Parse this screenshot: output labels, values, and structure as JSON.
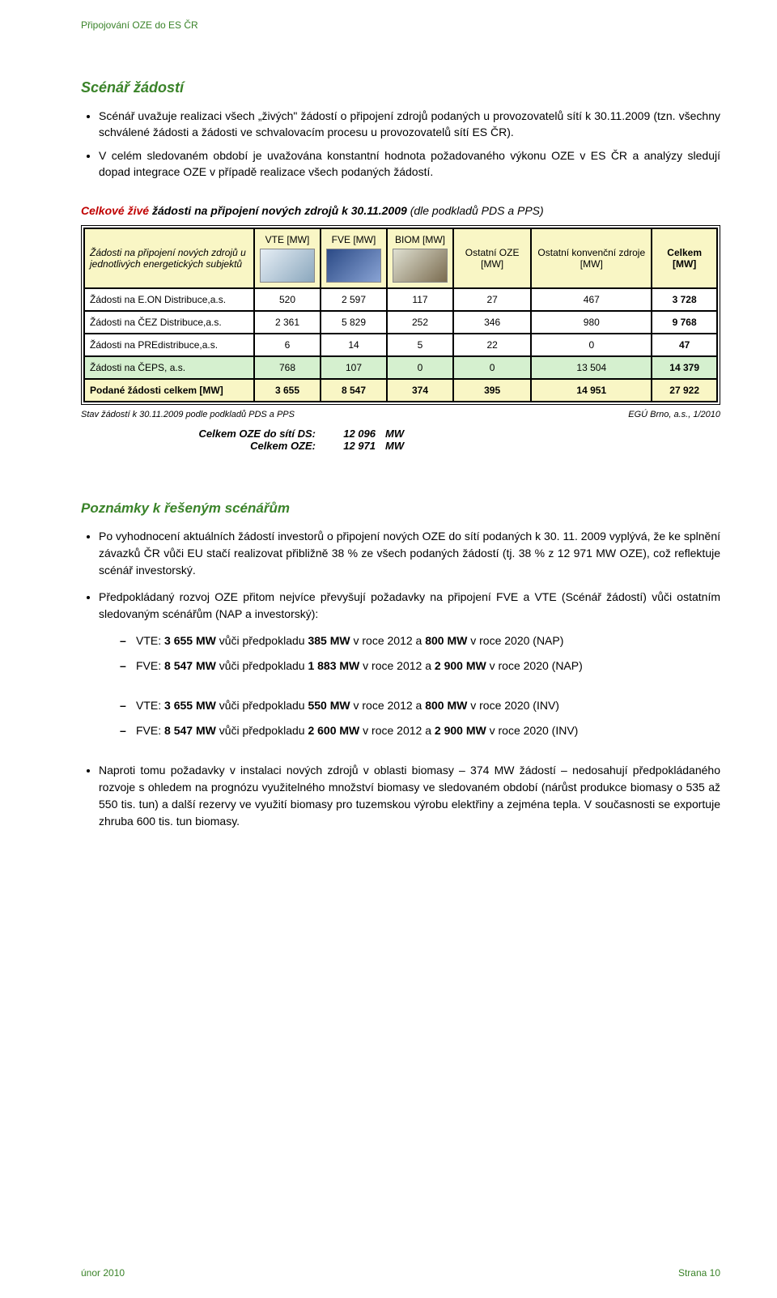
{
  "page": {
    "header": "Připojování OZE do ES ČR",
    "footer_left": "únor 2010",
    "footer_right": "Strana 10"
  },
  "section1": {
    "title": "Scénář žádostí",
    "bullets": [
      "Scénář uvažuje realizaci všech „živých\" žádostí o připojení zdrojů podaných u provozovatelů sítí k 30.11.2009 (tzn. všechny schválené žádosti a žádosti ve schvalovacím procesu u provozovatelů sítí ES ČR).",
      "V celém sledovaném období je uvažována konstantní hodnota požadovaného výkonu OZE v ES ČR a analýzy sledují dopad integrace OZE v případě realizace všech podaných žádostí."
    ]
  },
  "table": {
    "title_red": "Celkové živé",
    "title_bi": " žádosti na připojení nových zdrojů k 30.11.2009 ",
    "title_it": "(dle podkladů PDS a PPS)",
    "head_first": "Žádosti na připojení nových zdrojů u jednotlivých energetických subjektů",
    "columns": [
      {
        "label": "VTE [MW]",
        "has_image": true,
        "img_bg": "#e6eef5",
        "img_fg": "#8aa7bd"
      },
      {
        "label": "FVE [MW]",
        "has_image": true,
        "img_bg": "#2b4a86",
        "img_fg": "#89a3d4"
      },
      {
        "label": "BIOM [MW]",
        "has_image": true,
        "img_bg": "#dfe0d1",
        "img_fg": "#7a6b4f"
      },
      {
        "label": "Ostatní OZE [MW]",
        "has_image": false
      },
      {
        "label": "Ostatní konvenční zdroje [MW]",
        "has_image": false
      },
      {
        "label": "Celkem [MW]",
        "has_image": false,
        "bold": true
      }
    ],
    "rows": [
      {
        "label": "Žádosti na E.ON Distribuce,a.s.",
        "cells": [
          "520",
          "2 597",
          "117",
          "27",
          "467",
          "3 728"
        ]
      },
      {
        "label": "Žádosti na ČEZ Distribuce,a.s.",
        "cells": [
          "2 361",
          "5 829",
          "252",
          "346",
          "980",
          "9 768"
        ]
      },
      {
        "label": "Žádosti na PREdistribuce,a.s.",
        "cells": [
          "6",
          "14",
          "5",
          "22",
          "0",
          "47"
        ]
      }
    ],
    "ceps_row": {
      "label": "Žádosti na ČEPS, a.s.",
      "cells": [
        "768",
        "107",
        "0",
        "0",
        "13 504",
        "14 379"
      ]
    },
    "totals_row": {
      "label": "Podané žádosti celkem [MW]",
      "cells": [
        "3 655",
        "8 547",
        "374",
        "395",
        "14 951",
        "27 922"
      ]
    },
    "below_left": "Stav žádostí k 30.11.2009 podle podkladů PDS a PPS",
    "below_right": "EGÚ Brno, a.s., 1/2010",
    "totals_ds": [
      {
        "label": "Celkem OZE do sítí DS:",
        "value": "12 096",
        "unit": "MW"
      },
      {
        "label": "Celkem OZE:",
        "value": "12 971",
        "unit": "MW"
      }
    ]
  },
  "notes": {
    "title": "Poznámky k řešeným scénářům",
    "items": [
      {
        "html": "Po vyhodnocení aktuálních žádostí investorů o připojení nových OZE do sítí podaných k 30. 11. 2009 vyplývá, že ke splnění závazků ČR vůči EU stačí realizovat přibližně 38 % ze všech podaných žádostí (tj. 38 % z 12 971 MW OZE), což reflektuje scénář investorský."
      },
      {
        "html": "Předpokládaný rozvoj OZE přitom nejvíce převyšují požadavky na připojení FVE a VTE (Scénář žádostí) vůči ostatním sledovaným scénářům (NAP a investorský):",
        "dashes1": [
          "VTE: <b>3 655 MW</b> vůči předpokladu <b>385 MW</b> v roce 2012 a <b>800 MW</b> v roce 2020 (NAP)",
          "FVE: <b>8 547 MW</b> vůči předpokladu <b>1 883 MW</b> v roce 2012 a <b>2 900 MW</b> v roce 2020 (NAP)"
        ],
        "dashes2": [
          "VTE: <b>3 655 MW</b> vůči předpokladu <b>550 MW</b> v roce 2012 a <b>800 MW</b> v roce 2020 (INV)",
          "FVE: <b>8 547 MW</b> vůči předpokladu <b>2 600 MW</b> v roce 2012 a <b>2 900 MW</b> v roce 2020 (INV)"
        ]
      },
      {
        "html": "Naproti tomu požadavky v instalaci nových zdrojů v oblasti biomasy – 374 MW žádostí – nedosahují předpokládaného rozvoje s ohledem na prognózu využitelného množství biomasy ve sledovaném období (nárůst produkce biomasy o 535 až 550 tis. tun) a další rezervy ve využití biomasy pro tuzemskou výrobu elektřiny a zejména tepla. V současnosti se exportuje zhruba 600 tis. tun biomasy."
      }
    ]
  }
}
